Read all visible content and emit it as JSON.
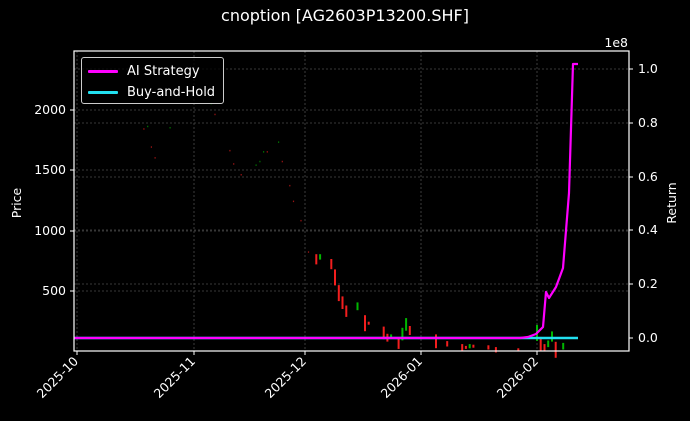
{
  "title": "cnoption [AG2603P13200.SHF]",
  "legend": {
    "items": [
      {
        "label": "AI Strategy",
        "color": "#ff00ff"
      },
      {
        "label": "Buy-and-Hold",
        "color": "#22e0f0"
      }
    ]
  },
  "axes": {
    "left_label": "Price",
    "right_label": "Return",
    "right_offset_text": "1e8",
    "left_ticks": [
      "500",
      "1000",
      "1500",
      "2000"
    ],
    "right_ticks": [
      "0.0",
      "0.2",
      "0.4",
      "0.6",
      "0.8",
      "1.0"
    ],
    "x_ticks": [
      "2025-10",
      "2025-11",
      "2025-12",
      "2026-01",
      "2026-02"
    ]
  },
  "colors": {
    "background": "#000000",
    "up": "#00c000",
    "down": "#ff2020",
    "grid": "#555555",
    "frame": "#ffffff"
  },
  "chart_data": {
    "type": "line",
    "title": "cnoption [AG2603P13200.SHF]",
    "xlabel": "",
    "ylabel": "Price",
    "y2label": "Return",
    "x_ticks": [
      "2025-10",
      "2025-11",
      "2025-12",
      "2026-01",
      "2026-02"
    ],
    "ylim": [
      0,
      2450
    ],
    "y2lim": [
      -5000000.0,
      106000000.0
    ],
    "y2_scale_text": "1e8",
    "grid": true,
    "legend_position": "upper left",
    "candlesticks": {
      "description": "OHLC price candles (red = down, green = up); early period sparse thin marks",
      "points": [
        {
          "date": "2025-10-19",
          "price": 1840
        },
        {
          "date": "2025-10-20",
          "price": 1860
        },
        {
          "date": "2025-10-21",
          "price": 1690
        },
        {
          "date": "2025-10-22",
          "price": 1600
        },
        {
          "date": "2025-10-26",
          "price": 1850
        },
        {
          "date": "2025-11-06",
          "price": 2050
        },
        {
          "date": "2025-11-07",
          "price": 1960
        },
        {
          "date": "2025-11-11",
          "price": 1660
        },
        {
          "date": "2025-11-12",
          "price": 1550
        },
        {
          "date": "2025-11-14",
          "price": 1460
        },
        {
          "date": "2025-11-18",
          "price": 1540
        },
        {
          "date": "2025-11-19",
          "price": 1570
        },
        {
          "date": "2025-11-20",
          "price": 1650
        },
        {
          "date": "2025-11-21",
          "price": 1650
        },
        {
          "date": "2025-11-24",
          "price": 1730
        },
        {
          "date": "2025-11-25",
          "price": 1570
        },
        {
          "date": "2025-11-27",
          "price": 1370
        },
        {
          "date": "2025-11-28",
          "price": 1240
        },
        {
          "date": "2025-11-30",
          "price": 1080
        },
        {
          "date": "2025-12-02",
          "price": 820
        },
        {
          "date": "2025-12-04",
          "price": 760
        },
        {
          "date": "2025-12-05",
          "price": 780
        },
        {
          "date": "2025-12-08",
          "price": 720
        },
        {
          "date": "2025-12-09",
          "price": 610
        },
        {
          "date": "2025-12-10",
          "price": 480
        },
        {
          "date": "2025-12-11",
          "price": 400
        },
        {
          "date": "2025-12-12",
          "price": 330
        },
        {
          "date": "2025-12-15",
          "price": 370
        },
        {
          "date": "2025-12-17",
          "price": 230
        },
        {
          "date": "2025-12-18",
          "price": 230
        },
        {
          "date": "2025-12-22",
          "price": 150
        },
        {
          "date": "2025-12-23",
          "price": 110
        },
        {
          "date": "2025-12-24",
          "price": 120
        },
        {
          "date": "2025-12-26",
          "price": 60
        },
        {
          "date": "2025-12-27",
          "price": 140
        },
        {
          "date": "2025-12-28",
          "price": 220
        },
        {
          "date": "2025-12-29",
          "price": 170
        },
        {
          "date": "2026-01-05",
          "price": 80
        },
        {
          "date": "2026-01-08",
          "price": 60
        },
        {
          "date": "2026-01-12",
          "price": 30
        },
        {
          "date": "2026-01-13",
          "price": 30
        },
        {
          "date": "2026-01-14",
          "price": 40
        },
        {
          "date": "2026-01-15",
          "price": 40
        },
        {
          "date": "2026-01-19",
          "price": 30
        },
        {
          "date": "2026-01-21",
          "price": 10
        },
        {
          "date": "2026-01-27",
          "price": 10
        },
        {
          "date": "2026-02-01",
          "price": 150
        },
        {
          "date": "2026-02-02",
          "price": 60
        },
        {
          "date": "2026-02-03",
          "price": 30
        },
        {
          "date": "2026-02-04",
          "price": 60
        },
        {
          "date": "2026-02-05",
          "price": 120
        },
        {
          "date": "2026-02-06",
          "price": 10
        },
        {
          "date": "2026-02-08",
          "price": 40
        }
      ]
    },
    "series": [
      {
        "name": "AI Strategy",
        "axis": "right",
        "color": "#ff00ff",
        "x": [
          "2025-10-01",
          "2026-01-27",
          "2026-01-31",
          "2026-02-04",
          "2026-02-06",
          "2026-02-07",
          "2026-02-12",
          "2026-02-15",
          "2026-02-16",
          "2026-02-17",
          "2026-02-18"
        ],
        "values": [
          0,
          0,
          200000.0,
          4000000.0,
          17000000.0,
          14000000.0,
          25000000.0,
          53000000.0,
          100000000.0,
          100000000.0,
          100000000.0
        ]
      },
      {
        "name": "Buy-and-Hold",
        "axis": "right",
        "color": "#22e0f0",
        "x": [
          "2025-09-30",
          "2026-02-19"
        ],
        "values": [
          0,
          0
        ]
      }
    ]
  }
}
